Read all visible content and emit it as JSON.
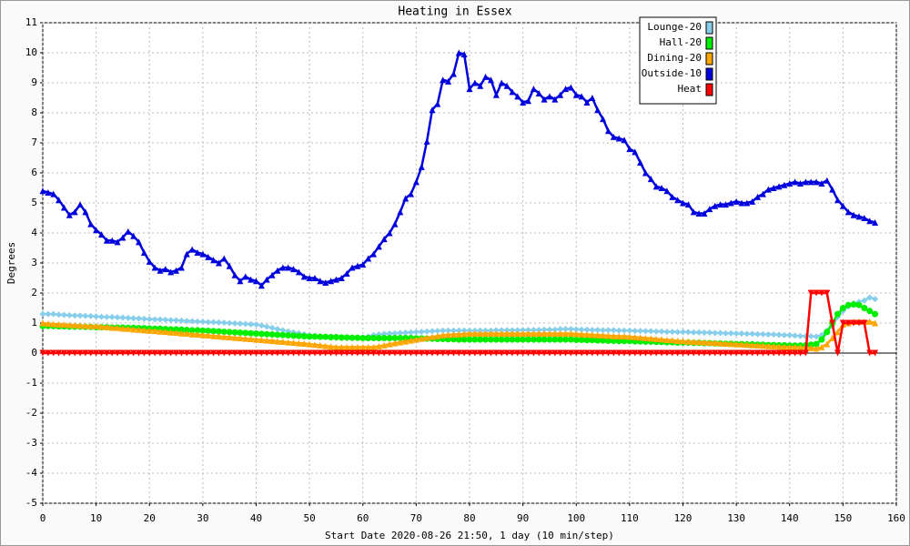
{
  "chart_data": {
    "type": "line",
    "title": "Heating in Essex",
    "x_label": "Start Date 2020-08-26 21:50, 1 day (10 min/step)",
    "y_label": "Degrees",
    "xlim": [
      0,
      160
    ],
    "xticks": [
      0,
      10,
      20,
      30,
      40,
      50,
      60,
      70,
      80,
      90,
      100,
      110,
      120,
      130,
      140,
      150,
      160
    ],
    "ylim": [
      -5,
      11
    ],
    "yticks": [
      -5,
      -4,
      -3,
      -2,
      -1,
      0,
      1,
      2,
      3,
      4,
      5,
      6,
      7,
      8,
      9,
      10,
      11
    ],
    "grid": true,
    "legend": "upper right",
    "x": [
      0,
      1,
      2,
      3,
      4,
      5,
      6,
      7,
      8,
      9,
      10,
      11,
      12,
      13,
      14,
      15,
      16,
      17,
      18,
      19,
      20,
      21,
      22,
      23,
      24,
      25,
      26,
      27,
      28,
      29,
      30,
      31,
      32,
      33,
      34,
      35,
      36,
      37,
      38,
      39,
      40,
      41,
      42,
      43,
      44,
      45,
      46,
      47,
      48,
      49,
      50,
      51,
      52,
      53,
      54,
      55,
      56,
      57,
      58,
      59,
      60,
      61,
      62,
      63,
      64,
      65,
      66,
      67,
      68,
      69,
      70,
      71,
      72,
      73,
      74,
      75,
      76,
      77,
      78,
      79,
      80,
      81,
      82,
      83,
      84,
      85,
      86,
      87,
      88,
      89,
      90,
      91,
      92,
      93,
      94,
      95,
      96,
      97,
      98,
      99,
      100,
      101,
      102,
      103,
      104,
      105,
      106,
      107,
      108,
      109,
      110,
      111,
      112,
      113,
      114,
      115,
      116,
      117,
      118,
      119,
      120,
      121,
      122,
      123,
      124,
      125,
      126,
      127,
      128,
      129,
      130,
      131,
      132,
      133,
      134,
      135,
      136,
      137,
      138,
      139,
      140,
      141,
      142,
      143,
      144,
      145,
      146,
      147,
      148,
      149,
      150,
      151,
      152,
      153,
      154,
      155,
      156
    ],
    "series": [
      {
        "name": "Lounge-20",
        "color": "#87ceeb",
        "marker": "diamond",
        "values": [
          1.3,
          1.3,
          1.3,
          1.28,
          1.27,
          1.26,
          1.25,
          1.25,
          1.24,
          1.23,
          1.22,
          1.21,
          1.2,
          1.2,
          1.19,
          1.18,
          1.17,
          1.16,
          1.15,
          1.14,
          1.13,
          1.12,
          1.12,
          1.11,
          1.1,
          1.09,
          1.08,
          1.07,
          1.06,
          1.05,
          1.04,
          1.03,
          1.03,
          1.02,
          1.01,
          1.0,
          0.99,
          0.98,
          0.97,
          0.96,
          0.95,
          0.92,
          0.88,
          0.84,
          0.8,
          0.76,
          0.72,
          0.69,
          0.66,
          0.63,
          0.6,
          0.58,
          0.56,
          0.54,
          0.52,
          0.5,
          0.5,
          0.5,
          0.5,
          0.5,
          0.52,
          0.55,
          0.6,
          0.62,
          0.64,
          0.65,
          0.66,
          0.67,
          0.68,
          0.69,
          0.7,
          0.71,
          0.72,
          0.73,
          0.74,
          0.75,
          0.75,
          0.75,
          0.75,
          0.75,
          0.75,
          0.75,
          0.75,
          0.75,
          0.75,
          0.76,
          0.76,
          0.76,
          0.76,
          0.76,
          0.77,
          0.77,
          0.77,
          0.77,
          0.78,
          0.78,
          0.78,
          0.8,
          0.8,
          0.8,
          0.79,
          0.78,
          0.78,
          0.77,
          0.77,
          0.76,
          0.76,
          0.76,
          0.75,
          0.75,
          0.75,
          0.74,
          0.74,
          0.73,
          0.73,
          0.72,
          0.72,
          0.71,
          0.71,
          0.7,
          0.7,
          0.7,
          0.69,
          0.69,
          0.68,
          0.68,
          0.67,
          0.67,
          0.66,
          0.66,
          0.65,
          0.65,
          0.64,
          0.64,
          0.63,
          0.63,
          0.62,
          0.62,
          0.61,
          0.6,
          0.6,
          0.58,
          0.57,
          0.56,
          0.56,
          0.55,
          0.6,
          0.75,
          0.9,
          1.2,
          1.4,
          1.55,
          1.65,
          1.7,
          1.75,
          1.85,
          1.8
        ]
      },
      {
        "name": "Hall-20",
        "color": "#00ee00",
        "marker": "circle",
        "values": [
          0.9,
          0.9,
          0.9,
          0.89,
          0.89,
          0.88,
          0.88,
          0.88,
          0.87,
          0.87,
          0.86,
          0.86,
          0.86,
          0.85,
          0.85,
          0.85,
          0.84,
          0.84,
          0.83,
          0.83,
          0.82,
          0.81,
          0.81,
          0.8,
          0.79,
          0.79,
          0.78,
          0.77,
          0.76,
          0.76,
          0.75,
          0.74,
          0.73,
          0.72,
          0.71,
          0.7,
          0.69,
          0.68,
          0.67,
          0.66,
          0.65,
          0.64,
          0.63,
          0.62,
          0.61,
          0.6,
          0.59,
          0.58,
          0.57,
          0.56,
          0.55,
          0.55,
          0.54,
          0.54,
          0.53,
          0.53,
          0.52,
          0.52,
          0.51,
          0.51,
          0.5,
          0.5,
          0.5,
          0.5,
          0.5,
          0.5,
          0.5,
          0.5,
          0.5,
          0.5,
          0.49,
          0.49,
          0.48,
          0.48,
          0.47,
          0.47,
          0.46,
          0.46,
          0.45,
          0.45,
          0.45,
          0.45,
          0.45,
          0.45,
          0.45,
          0.45,
          0.45,
          0.45,
          0.45,
          0.45,
          0.45,
          0.45,
          0.45,
          0.45,
          0.45,
          0.45,
          0.45,
          0.45,
          0.45,
          0.45,
          0.44,
          0.44,
          0.43,
          0.43,
          0.42,
          0.42,
          0.41,
          0.41,
          0.4,
          0.4,
          0.4,
          0.39,
          0.39,
          0.38,
          0.38,
          0.37,
          0.37,
          0.36,
          0.36,
          0.35,
          0.35,
          0.35,
          0.34,
          0.34,
          0.33,
          0.33,
          0.32,
          0.32,
          0.31,
          0.31,
          0.3,
          0.3,
          0.29,
          0.29,
          0.28,
          0.28,
          0.27,
          0.27,
          0.26,
          0.26,
          0.25,
          0.25,
          0.25,
          0.26,
          0.28,
          0.3,
          0.45,
          0.7,
          1.0,
          1.3,
          1.5,
          1.6,
          1.62,
          1.6,
          1.5,
          1.4,
          1.3
        ]
      },
      {
        "name": "Dining-20",
        "color": "#ffa500",
        "marker": "triangle",
        "values": [
          1.0,
          0.98,
          0.97,
          0.96,
          0.95,
          0.94,
          0.93,
          0.92,
          0.91,
          0.9,
          0.9,
          0.88,
          0.87,
          0.85,
          0.84,
          0.82,
          0.81,
          0.79,
          0.78,
          0.76,
          0.75,
          0.74,
          0.72,
          0.71,
          0.69,
          0.68,
          0.66,
          0.65,
          0.63,
          0.62,
          0.6,
          0.59,
          0.57,
          0.56,
          0.54,
          0.53,
          0.51,
          0.5,
          0.48,
          0.47,
          0.45,
          0.44,
          0.42,
          0.41,
          0.39,
          0.38,
          0.36,
          0.35,
          0.33,
          0.32,
          0.3,
          0.28,
          0.26,
          0.24,
          0.22,
          0.2,
          0.2,
          0.2,
          0.2,
          0.2,
          0.2,
          0.2,
          0.2,
          0.23,
          0.26,
          0.3,
          0.33,
          0.36,
          0.39,
          0.42,
          0.45,
          0.48,
          0.51,
          0.54,
          0.57,
          0.6,
          0.61,
          0.62,
          0.63,
          0.64,
          0.65,
          0.65,
          0.65,
          0.65,
          0.65,
          0.65,
          0.65,
          0.65,
          0.65,
          0.65,
          0.65,
          0.65,
          0.65,
          0.65,
          0.65,
          0.65,
          0.65,
          0.65,
          0.65,
          0.65,
          0.64,
          0.63,
          0.62,
          0.61,
          0.6,
          0.59,
          0.58,
          0.57,
          0.56,
          0.56,
          0.55,
          0.53,
          0.52,
          0.5,
          0.49,
          0.47,
          0.46,
          0.44,
          0.43,
          0.41,
          0.4,
          0.39,
          0.38,
          0.37,
          0.36,
          0.35,
          0.34,
          0.33,
          0.32,
          0.31,
          0.3,
          0.29,
          0.28,
          0.27,
          0.26,
          0.25,
          0.24,
          0.23,
          0.22,
          0.21,
          0.2,
          0.2,
          0.19,
          0.18,
          0.17,
          0.15,
          0.2,
          0.3,
          0.5,
          0.7,
          0.95,
          1.0,
          1.05,
          1.05,
          1.05,
          1.05,
          1.0
        ]
      },
      {
        "name": "Outside-10",
        "color": "#0000dd",
        "marker": "triangle",
        "values": [
          5.4,
          5.35,
          5.3,
          5.1,
          4.85,
          4.6,
          4.7,
          4.95,
          4.7,
          4.3,
          4.1,
          3.95,
          3.75,
          3.75,
          3.7,
          3.85,
          4.05,
          3.9,
          3.7,
          3.35,
          3.05,
          2.85,
          2.75,
          2.8,
          2.7,
          2.75,
          2.85,
          3.3,
          3.45,
          3.35,
          3.3,
          3.2,
          3.1,
          3.0,
          3.15,
          2.9,
          2.6,
          2.4,
          2.55,
          2.45,
          2.4,
          2.25,
          2.45,
          2.6,
          2.75,
          2.85,
          2.85,
          2.8,
          2.7,
          2.55,
          2.5,
          2.5,
          2.4,
          2.35,
          2.4,
          2.45,
          2.5,
          2.65,
          2.85,
          2.9,
          2.95,
          3.15,
          3.3,
          3.55,
          3.8,
          4.0,
          4.3,
          4.7,
          5.15,
          5.3,
          5.7,
          6.2,
          7.05,
          8.1,
          8.3,
          9.1,
          9.05,
          9.3,
          10.0,
          9.95,
          8.8,
          9.0,
          8.9,
          9.2,
          9.1,
          8.6,
          9.0,
          8.9,
          8.7,
          8.55,
          8.35,
          8.4,
          8.8,
          8.65,
          8.45,
          8.55,
          8.45,
          8.6,
          8.8,
          8.85,
          8.6,
          8.55,
          8.35,
          8.5,
          8.1,
          7.8,
          7.4,
          7.2,
          7.15,
          7.1,
          6.8,
          6.7,
          6.35,
          6.0,
          5.8,
          5.55,
          5.5,
          5.4,
          5.2,
          5.1,
          5.0,
          4.95,
          4.7,
          4.65,
          4.65,
          4.8,
          4.9,
          4.95,
          4.95,
          5.0,
          5.05,
          5.0,
          5.0,
          5.05,
          5.2,
          5.3,
          5.45,
          5.5,
          5.55,
          5.6,
          5.65,
          5.7,
          5.65,
          5.7,
          5.7,
          5.7,
          5.65,
          5.75,
          5.45,
          5.1,
          4.9,
          4.7,
          4.6,
          4.55,
          4.5,
          4.4,
          4.35
        ]
      },
      {
        "name": "Heat",
        "color": "#ff0000",
        "marker": "triangle-down",
        "values": [
          0,
          0,
          0,
          0,
          0,
          0,
          0,
          0,
          0,
          0,
          0,
          0,
          0,
          0,
          0,
          0,
          0,
          0,
          0,
          0,
          0,
          0,
          0,
          0,
          0,
          0,
          0,
          0,
          0,
          0,
          0,
          0,
          0,
          0,
          0,
          0,
          0,
          0,
          0,
          0,
          0,
          0,
          0,
          0,
          0,
          0,
          0,
          0,
          0,
          0,
          0,
          0,
          0,
          0,
          0,
          0,
          0,
          0,
          0,
          0,
          0,
          0,
          0,
          0,
          0,
          0,
          0,
          0,
          0,
          0,
          0,
          0,
          0,
          0,
          0,
          0,
          0,
          0,
          0,
          0,
          0,
          0,
          0,
          0,
          0,
          0,
          0,
          0,
          0,
          0,
          0,
          0,
          0,
          0,
          0,
          0,
          0,
          0,
          0,
          0,
          0,
          0,
          0,
          0,
          0,
          0,
          0,
          0,
          0,
          0,
          0,
          0,
          0,
          0,
          0,
          0,
          0,
          0,
          0,
          0,
          0,
          0,
          0,
          0,
          0,
          0,
          0,
          0,
          0,
          0,
          0,
          0,
          0,
          0,
          0,
          0,
          0,
          0,
          0,
          0,
          0,
          0,
          0,
          0,
          2,
          2,
          2,
          2,
          1,
          0,
          1,
          1,
          1,
          1,
          1,
          0,
          0
        ]
      }
    ]
  }
}
